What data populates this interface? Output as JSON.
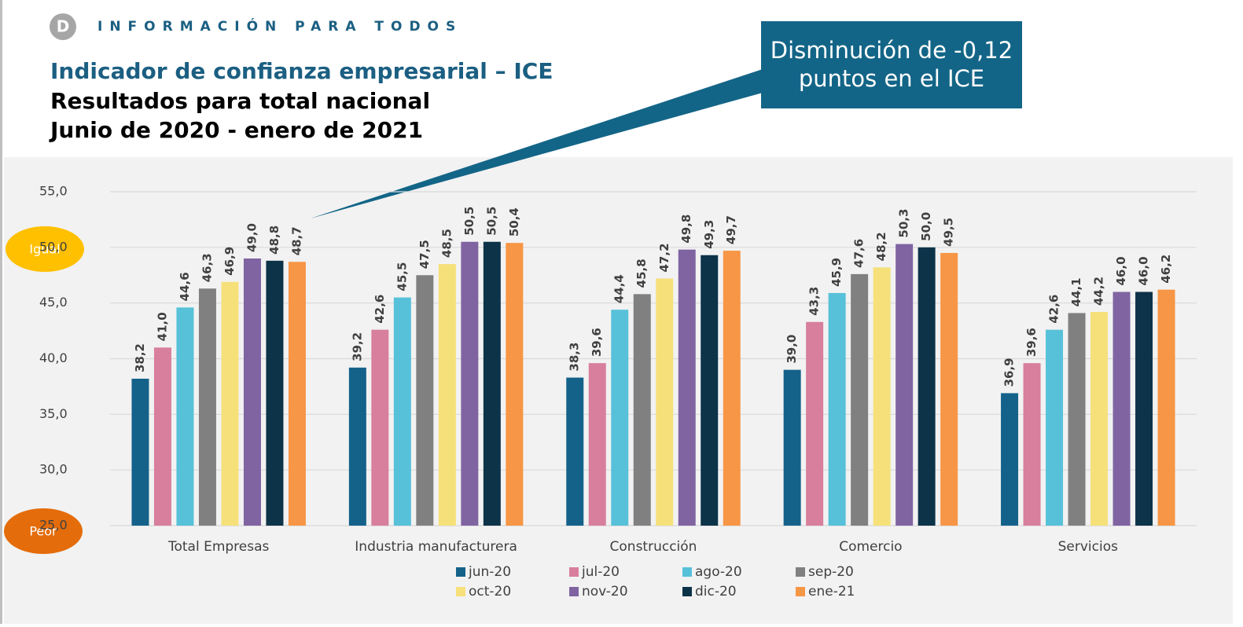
{
  "header": "INFORMACIÓN PARA TODOS",
  "chart_data": {
    "type": "bar",
    "title": "Indicador de confianza empresarial – ICE",
    "subtitle": [
      "Resultados para total nacional",
      "Junio de 2020 - enero de 2021"
    ],
    "callout": [
      "Disminución de -0,12",
      "puntos en el ICE"
    ],
    "annotations": [
      "Igual",
      "Peor"
    ],
    "categories": [
      "Total Empresas",
      "Industria manufacturera",
      "Construcción",
      "Comercio",
      "Servicios"
    ],
    "ylim": [
      25,
      55
    ],
    "yticks": [
      {
        "value": 25,
        "label": "25,0"
      },
      {
        "value": 30,
        "label": "30,0"
      },
      {
        "value": 35,
        "label": "35,0"
      },
      {
        "value": 40,
        "label": "40,0"
      },
      {
        "value": 45,
        "label": "45,0"
      },
      {
        "value": 50,
        "label": "50,0"
      },
      {
        "value": 55,
        "label": "55,0"
      }
    ],
    "grid": true,
    "legend": "bottom",
    "series": [
      {
        "name": "jun-20",
        "color": "#14628a",
        "values": [
          38.2,
          39.2,
          38.3,
          39.0,
          36.9
        ],
        "value_labels": [
          "38,2",
          "39,2",
          "38,3",
          "39,0",
          "36,9"
        ]
      },
      {
        "name": "jul-20",
        "color": "#d77f9c",
        "values": [
          41.0,
          42.6,
          39.6,
          43.3,
          39.6
        ],
        "value_labels": [
          "41,0",
          "42,6",
          "39,6",
          "43,3",
          "39,6"
        ]
      },
      {
        "name": "ago-20",
        "color": "#57c1d9",
        "values": [
          44.6,
          45.5,
          44.4,
          45.9,
          42.6
        ],
        "value_labels": [
          "44,6",
          "45,5",
          "44,4",
          "45,9",
          "42,6"
        ]
      },
      {
        "name": "sep-20",
        "color": "#808080",
        "values": [
          46.3,
          47.5,
          45.8,
          47.6,
          44.1
        ],
        "value_labels": [
          "46,3",
          "47,5",
          "45,8",
          "47,6",
          "44,1"
        ]
      },
      {
        "name": "oct-20",
        "color": "#f6e07a",
        "values": [
          46.9,
          48.5,
          47.2,
          48.2,
          44.2
        ],
        "value_labels": [
          "46,9",
          "48,5",
          "47,2",
          "48,2",
          "44,2"
        ]
      },
      {
        "name": "nov-20",
        "color": "#8064a2",
        "values": [
          49.0,
          50.5,
          49.8,
          50.3,
          46.0
        ],
        "value_labels": [
          "49,0",
          "50,5",
          "49,8",
          "50,3",
          "46,0"
        ]
      },
      {
        "name": "dic-20",
        "color": "#0d3349",
        "values": [
          48.8,
          50.5,
          49.3,
          50.0,
          46.0
        ],
        "value_labels": [
          "48,8",
          "50,5",
          "49,3",
          "50,0",
          "46,0"
        ]
      },
      {
        "name": "ene-21",
        "color": "#f79646",
        "values": [
          48.7,
          50.4,
          49.7,
          49.5,
          46.2
        ],
        "value_labels": [
          "48,7",
          "50,4",
          "49,7",
          "49,5",
          "46,2"
        ]
      }
    ]
  }
}
